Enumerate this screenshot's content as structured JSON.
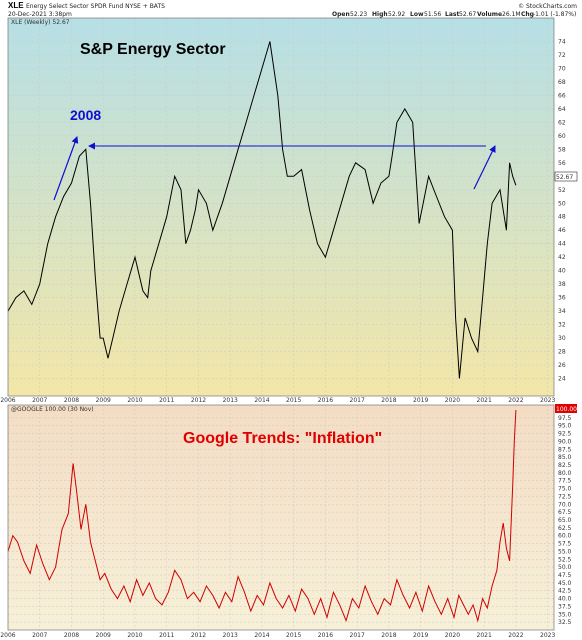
{
  "header": {
    "symbol": "XLE",
    "description": "Energy Select Sector SPDR Fund NYSE + BATS",
    "date": "20-Dec-2021 3:38pm",
    "open_label": "Open",
    "open_value": "52.23",
    "high_label": "High",
    "high_value": "52.92",
    "low_label": "Low",
    "low_value": "51.56",
    "last_label": "Last",
    "last_value": "52.67",
    "volume_label": "Volume",
    "volume_value": "26.1M",
    "chg_label": "Chg",
    "chg_value": "-1.01 (-1.87%)",
    "watermark": "© StockCharts.com"
  },
  "colors": {
    "price_line": "#000000",
    "trends_line": "#d00000",
    "arrow": "#1010d0",
    "top_bg_top": "#b6dfe6",
    "top_bg_bottom": "#f3e6a8",
    "bottom_bg_top": "#f4dcc4",
    "bottom_bg_bottom": "#f7f0d8"
  },
  "chart_data": [
    {
      "type": "line",
      "legend": "XLE (Weekly) 52.67",
      "title": "S&P Energy Sector",
      "annotation": "2008",
      "last_value_label": "52.67",
      "x_tick_labels": [
        "2006",
        "2007",
        "2008",
        "2009",
        "2010",
        "2011",
        "2012",
        "2013",
        "2014",
        "2015",
        "2016",
        "2017",
        "2018",
        "2019",
        "2020",
        "2021",
        "2022",
        "2023"
      ],
      "ylim": [
        22,
        76
      ],
      "y_ticks": [
        24,
        26,
        28,
        30,
        32,
        34,
        36,
        38,
        40,
        42,
        44,
        46,
        48,
        50,
        52,
        54,
        56,
        58,
        60,
        62,
        64,
        66,
        68,
        70,
        72,
        74
      ],
      "grid": true,
      "series": [
        {
          "x": [
            2006.0,
            2006.25,
            2006.5,
            2006.75,
            2007.0,
            2007.25,
            2007.5,
            2007.75,
            2008.0,
            2008.25,
            2008.45,
            2008.6,
            2008.75,
            2008.9,
            2009.0,
            2009.15,
            2009.3,
            2009.5,
            2009.75,
            2010.0,
            2010.25,
            2010.4,
            2010.5,
            2010.75,
            2011.0,
            2011.25,
            2011.45,
            2011.6,
            2011.75,
            2011.9,
            2012.0,
            2012.25,
            2012.45,
            2012.75,
            2013.0,
            2013.25,
            2013.5,
            2013.75,
            2014.0,
            2014.25,
            2014.5,
            2014.65,
            2014.8,
            2015.0,
            2015.25,
            2015.5,
            2015.75,
            2016.0,
            2016.25,
            2016.5,
            2016.75,
            2016.95,
            2017.25,
            2017.5,
            2017.75,
            2018.0,
            2018.1,
            2018.25,
            2018.5,
            2018.75,
            2018.95,
            2019.25,
            2019.5,
            2019.75,
            2020.0,
            2020.1,
            2020.22,
            2020.4,
            2020.6,
            2020.8,
            2020.95,
            2021.1,
            2021.25,
            2021.5,
            2021.7,
            2021.8,
            2021.9,
            2022.0
          ],
          "values": [
            34,
            36,
            37,
            35,
            38,
            44,
            48,
            51,
            53,
            57,
            58,
            50,
            39,
            30,
            30,
            27,
            30,
            34,
            38,
            42,
            37,
            36,
            40,
            44,
            48,
            54,
            52,
            44,
            46,
            49,
            52,
            50,
            46,
            50,
            54,
            58,
            62,
            66,
            70,
            74,
            66,
            58,
            54,
            54,
            55,
            49,
            44,
            42,
            46,
            50,
            54,
            56,
            55,
            50,
            53,
            54,
            57,
            62,
            64,
            62,
            47,
            54,
            51,
            48,
            46,
            33,
            24,
            33,
            30,
            28,
            36,
            44,
            50,
            52,
            46,
            56,
            54,
            52.67
          ]
        }
      ]
    },
    {
      "type": "line",
      "legend": "@GOOGLE 100.00 (30 Nov)",
      "title": "Google Trends: \"Inflation\"",
      "last_value_label": "100.00",
      "x_tick_labels": [
        "2006",
        "2007",
        "2008",
        "2009",
        "2010",
        "2011",
        "2012",
        "2013",
        "2014",
        "2015",
        "2016",
        "2017",
        "2018",
        "2019",
        "2020",
        "2021",
        "2022",
        "2023"
      ],
      "ylim": [
        30,
        100
      ],
      "y_ticks": [
        32.5,
        35.0,
        37.5,
        40.0,
        42.5,
        45.0,
        47.5,
        50.0,
        52.5,
        55.0,
        57.5,
        60.0,
        62.5,
        65.0,
        67.5,
        70.0,
        72.5,
        75.0,
        77.5,
        80.0,
        82.5,
        85.0,
        87.5,
        90.0,
        92.5,
        95.0,
        97.5
      ],
      "grid": true,
      "series": [
        {
          "x": [
            2006.0,
            2006.15,
            2006.3,
            2006.5,
            2006.7,
            2006.9,
            2007.1,
            2007.3,
            2007.5,
            2007.7,
            2007.9,
            2008.05,
            2008.15,
            2008.3,
            2008.45,
            2008.6,
            2008.75,
            2008.9,
            2009.05,
            2009.25,
            2009.45,
            2009.65,
            2009.85,
            2010.05,
            2010.25,
            2010.45,
            2010.65,
            2010.85,
            2011.05,
            2011.25,
            2011.45,
            2011.65,
            2011.85,
            2012.05,
            2012.25,
            2012.45,
            2012.65,
            2012.85,
            2013.05,
            2013.25,
            2013.45,
            2013.65,
            2013.85,
            2014.05,
            2014.25,
            2014.45,
            2014.65,
            2014.85,
            2015.05,
            2015.25,
            2015.45,
            2015.65,
            2015.85,
            2016.05,
            2016.25,
            2016.45,
            2016.65,
            2016.85,
            2017.05,
            2017.25,
            2017.45,
            2017.65,
            2017.85,
            2018.05,
            2018.25,
            2018.45,
            2018.65,
            2018.85,
            2019.05,
            2019.25,
            2019.45,
            2019.65,
            2019.85,
            2020.05,
            2020.2,
            2020.35,
            2020.5,
            2020.65,
            2020.8,
            2020.95,
            2021.1,
            2021.25,
            2021.4,
            2021.5,
            2021.6,
            2021.7,
            2021.8,
            2021.9,
            2021.95,
            2022.0
          ],
          "values": [
            55,
            60,
            58,
            52,
            48,
            57,
            51,
            46,
            50,
            62,
            67,
            83,
            75,
            62,
            70,
            58,
            52,
            46,
            48,
            43,
            40,
            44,
            39,
            46,
            41,
            45,
            40,
            38,
            42,
            49,
            46,
            40,
            42,
            39,
            44,
            41,
            37,
            42,
            39,
            47,
            42,
            36,
            41,
            38,
            45,
            40,
            37,
            41,
            36,
            43,
            40,
            35,
            40,
            34,
            42,
            38,
            33,
            40,
            37,
            44,
            39,
            35,
            40,
            38,
            46,
            41,
            37,
            42,
            36,
            44,
            39,
            35,
            40,
            34,
            41,
            38,
            35,
            38,
            33,
            40,
            37,
            44,
            49,
            58,
            64,
            56,
            52,
            76,
            90,
            100
          ]
        }
      ]
    }
  ]
}
